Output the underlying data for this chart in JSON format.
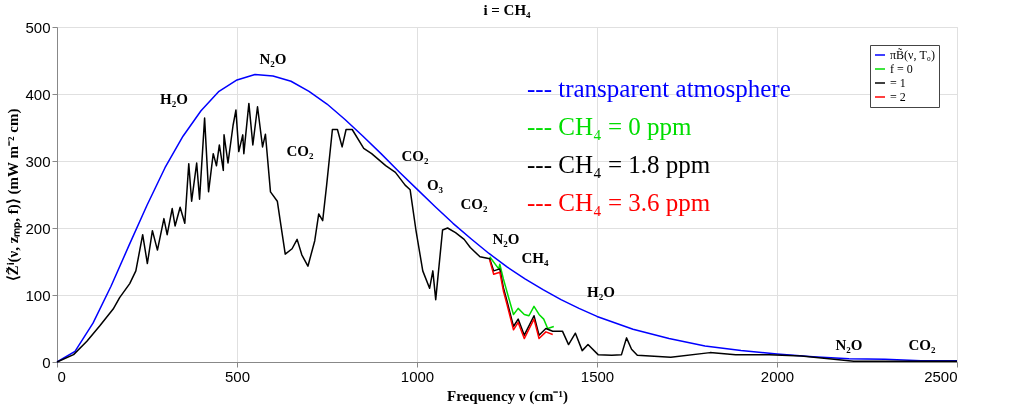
{
  "chart_data": {
    "type": "line",
    "title": "i = CH₄",
    "xlabel": "Frequency ν (cm⁻¹)",
    "ylabel": "⟨Z̃ⁱ(ν, zₘₚ, f)⟩ (mW m⁻² cm)",
    "xlim": [
      0,
      2500
    ],
    "xticks": [
      0,
      500,
      1000,
      1500,
      2000,
      2500
    ],
    "ylim": [
      0,
      500
    ],
    "yticks": [
      0,
      100,
      200,
      300,
      400,
      500
    ],
    "grid": true,
    "legend": "top right",
    "marker": "none",
    "line_style": "solid",
    "series": [
      {
        "name": "πB̃(ν, T₀)",
        "color": "#0000ff",
        "x": [
          0,
          50,
          100,
          150,
          200,
          250,
          300,
          350,
          400,
          450,
          500,
          550,
          600,
          650,
          700,
          750,
          800,
          850,
          900,
          950,
          1000,
          1050,
          1100,
          1150,
          1200,
          1250,
          1300,
          1350,
          1400,
          1450,
          1500,
          1600,
          1700,
          1800,
          1900,
          2000,
          2100,
          2200,
          2300,
          2400,
          2500
        ],
        "values": [
          0,
          16,
          58,
          113,
          174,
          234,
          290,
          337,
          375,
          404,
          421,
          429,
          427,
          419,
          404,
          385,
          362,
          337,
          311,
          284,
          258,
          232,
          207,
          184,
          162,
          142,
          124,
          108,
          93,
          80,
          68,
          49,
          35,
          24,
          17,
          12,
          8,
          5,
          4,
          2,
          2
        ]
      },
      {
        "name": "f = 0",
        "color": "#00dd00",
        "x": [
          1202,
          1227,
          1230,
          1240,
          1254,
          1268,
          1281,
          1298,
          1311,
          1325,
          1339,
          1352,
          1363,
          1380
        ],
        "values": [
          157,
          139,
          146,
          124,
          97,
          71,
          80,
          71,
          69,
          83,
          71,
          64,
          50,
          53
        ]
      },
      {
        "name": "= 1",
        "color": "#000000",
        "x": [
          0,
          46,
          83,
          119,
          156,
          174,
          202,
          219,
          238,
          251,
          265,
          279,
          297,
          306,
          320,
          328,
          342,
          355,
          366,
          374,
          388,
          396,
          410,
          421,
          434,
          443,
          451,
          462,
          464,
          475,
          489,
          497,
          505,
          516,
          519,
          533,
          544,
          557,
          571,
          579,
          593,
          612,
          620,
          634,
          653,
          667,
          680,
          697,
          716,
          727,
          738,
          749,
          765,
          779,
          792,
          803,
          820,
          852,
          874,
          913,
          940,
          967,
          981,
          997,
          1016,
          1035,
          1044,
          1052,
          1071,
          1085,
          1107,
          1131,
          1148,
          1175,
          1202,
          1213,
          1230,
          1240,
          1249,
          1268,
          1281,
          1298,
          1311,
          1325,
          1339,
          1358,
          1377,
          1404,
          1421,
          1440,
          1459,
          1475,
          1503,
          1541,
          1568,
          1582,
          1596,
          1612,
          1705,
          1814,
          1885,
          1978,
          2068,
          2158,
          2213,
          2350,
          2500
        ],
        "values": [
          0,
          11,
          31,
          54,
          79,
          96,
          117,
          136,
          190,
          147,
          196,
          167,
          214,
          190,
          229,
          203,
          231,
          207,
          296,
          240,
          297,
          243,
          364,
          254,
          311,
          293,
          324,
          286,
          339,
          297,
          353,
          376,
          314,
          339,
          311,
          386,
          324,
          381,
          321,
          340,
          254,
          240,
          211,
          161,
          169,
          183,
          160,
          143,
          181,
          221,
          211,
          264,
          347,
          347,
          321,
          347,
          347,
          319,
          311,
          293,
          283,
          264,
          257,
          197,
          136,
          110,
          136,
          93,
          197,
          200,
          193,
          183,
          171,
          157,
          154,
          136,
          139,
          111,
          93,
          53,
          64,
          40,
          54,
          69,
          40,
          50,
          46,
          46,
          26,
          43,
          17,
          26,
          11,
          10,
          11,
          36,
          19,
          10,
          7,
          14,
          11,
          11,
          9,
          4,
          1,
          1,
          1
        ]
      },
      {
        "name": "= 2",
        "color": "#ff0000",
        "x": [
          1202,
          1213,
          1230,
          1240,
          1249,
          1268,
          1281,
          1298,
          1311,
          1325,
          1339,
          1358,
          1377
        ],
        "values": [
          152,
          131,
          134,
          106,
          88,
          48,
          59,
          35,
          49,
          64,
          35,
          45,
          41
        ]
      }
    ],
    "annotations": [
      "H₂O",
      "N₂O",
      "CO₂",
      "CO₂",
      "O₃",
      "CO₂",
      "N₂O",
      "CH₄",
      "H₂O",
      "N₂O",
      "CO₂",
      "--- transparent atmosphere",
      "--- CH₄ = 0 ppm",
      "--- CH₄ = 1.8 ppm",
      "--- CH₄ = 3.6 ppm"
    ]
  }
}
